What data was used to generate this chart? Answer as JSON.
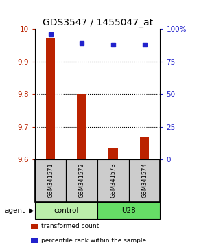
{
  "title": "GDS3547 / 1455047_at",
  "samples": [
    "GSM341571",
    "GSM341572",
    "GSM341573",
    "GSM341574"
  ],
  "bar_values": [
    9.972,
    9.8,
    9.635,
    9.67
  ],
  "percentile_values": [
    96,
    89,
    88,
    88
  ],
  "ylim_left": [
    9.6,
    10.0
  ],
  "ylim_right": [
    0,
    100
  ],
  "yticks_left": [
    9.6,
    9.7,
    9.8,
    9.9,
    10
  ],
  "yticks_right": [
    0,
    25,
    50,
    75,
    100
  ],
  "bar_color": "#bb2200",
  "marker_color": "#2222cc",
  "groups": [
    {
      "label": "control",
      "samples": [
        0,
        1
      ],
      "color": "#bbeeaa"
    },
    {
      "label": "U28",
      "samples": [
        2,
        3
      ],
      "color": "#66dd66"
    }
  ],
  "agent_label": "agent",
  "legend": [
    {
      "label": "transformed count",
      "color": "#bb2200"
    },
    {
      "label": "percentile rank within the sample",
      "color": "#2222cc"
    }
  ],
  "sample_box_color": "#cccccc",
  "title_fontsize": 10,
  "tick_fontsize": 7.5,
  "bar_width": 0.3
}
